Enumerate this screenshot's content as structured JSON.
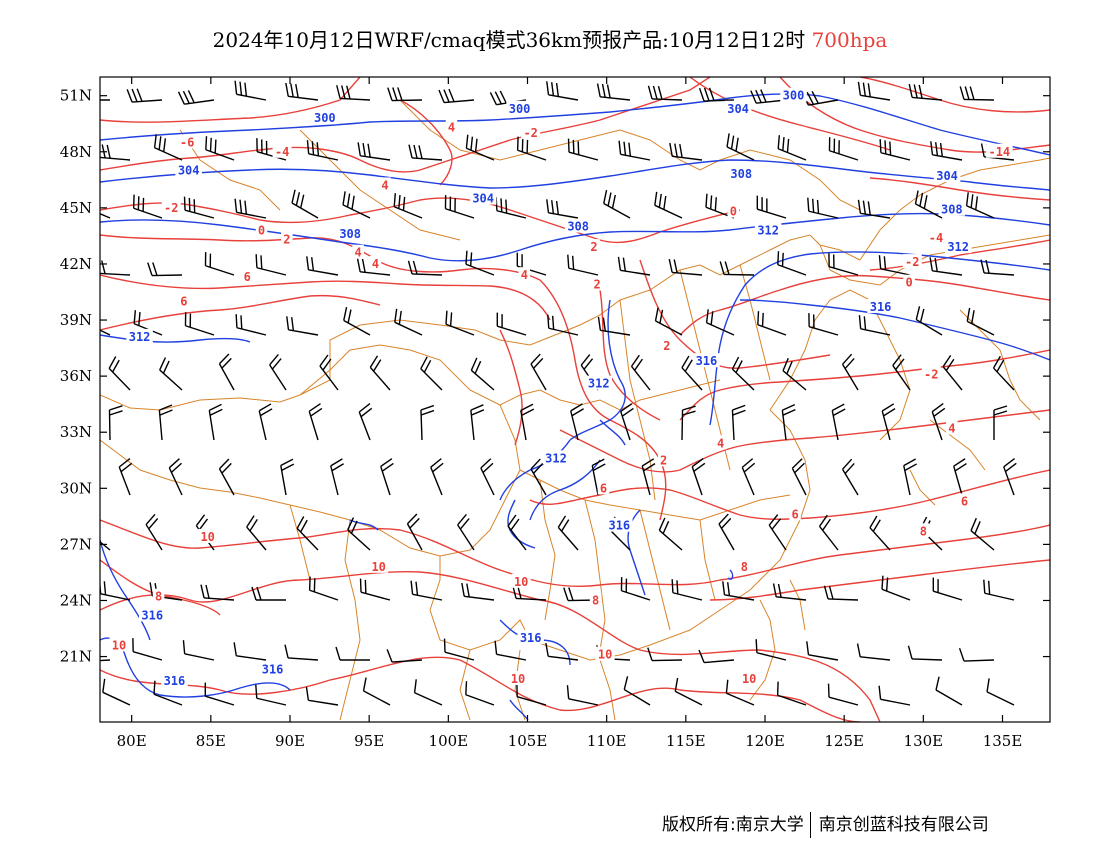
{
  "title": {
    "main": "2024年10月12日WRF/cmaq模式36km预报产品:10月12日12时",
    "level": "700hpa"
  },
  "colors": {
    "height_contour": "#2040e0",
    "temperature_contour": "#e8403a",
    "boundary": "#d8842a",
    "wind_barb": "#000000",
    "frame": "#000000"
  },
  "map": {
    "lon_range": [
      78,
      138
    ],
    "lat_range": [
      17.5,
      52
    ],
    "lon_ticks": [
      "80E",
      "85E",
      "90E",
      "95E",
      "100E",
      "105E",
      "110E",
      "115E",
      "120E",
      "125E",
      "130E",
      "135E"
    ],
    "lat_ticks": [
      "51N",
      "48N",
      "45N",
      "42N",
      "39N",
      "36N",
      "33N",
      "30N",
      "27N",
      "24N",
      "21N"
    ]
  },
  "height_labels": [
    {
      "text": "300",
      "lon": 92.2,
      "lat": 49.8
    },
    {
      "text": "300",
      "lon": 104.5,
      "lat": 50.3
    },
    {
      "text": "300",
      "lon": 121.8,
      "lat": 51.0
    },
    {
      "text": "304",
      "lon": 83.6,
      "lat": 47.0
    },
    {
      "text": "304",
      "lon": 102.2,
      "lat": 45.5
    },
    {
      "text": "304",
      "lon": 118.3,
      "lat": 50.3
    },
    {
      "text": "304",
      "lon": 131.5,
      "lat": 46.7
    },
    {
      "text": "308",
      "lon": 93.8,
      "lat": 43.6
    },
    {
      "text": "308",
      "lon": 108.2,
      "lat": 44.0
    },
    {
      "text": "308",
      "lon": 118.5,
      "lat": 46.8
    },
    {
      "text": "308",
      "lon": 131.8,
      "lat": 44.9
    },
    {
      "text": "312",
      "lon": 80.5,
      "lat": 38.1
    },
    {
      "text": "312",
      "lon": 120.2,
      "lat": 43.8
    },
    {
      "text": "312",
      "lon": 132.2,
      "lat": 42.9
    },
    {
      "text": "312",
      "lon": 109.5,
      "lat": 35.6
    },
    {
      "text": "312",
      "lon": 106.8,
      "lat": 31.6
    },
    {
      "text": "316",
      "lon": 127.3,
      "lat": 39.7
    },
    {
      "text": "316",
      "lon": 116.3,
      "lat": 36.8
    },
    {
      "text": "316",
      "lon": 110.8,
      "lat": 28.0
    },
    {
      "text": "316",
      "lon": 81.3,
      "lat": 23.2
    },
    {
      "text": "316",
      "lon": 82.7,
      "lat": 19.7
    },
    {
      "text": "316",
      "lon": 88.9,
      "lat": 20.3
    },
    {
      "text": "316",
      "lon": 105.2,
      "lat": 22.0
    }
  ],
  "temperature_labels": [
    {
      "text": "-6",
      "lon": 83.5,
      "lat": 48.5
    },
    {
      "text": "-4",
      "lon": 89.5,
      "lat": 48.0
    },
    {
      "text": "4",
      "lon": 96.0,
      "lat": 46.2
    },
    {
      "text": "4",
      "lon": 100.2,
      "lat": 49.3
    },
    {
      "text": "-2",
      "lon": 105.2,
      "lat": 49.0
    },
    {
      "text": "-14",
      "lon": 134.8,
      "lat": 48.0
    },
    {
      "text": "-2",
      "lon": 82.5,
      "lat": 45.0
    },
    {
      "text": "0",
      "lon": 88.2,
      "lat": 43.8
    },
    {
      "text": "2",
      "lon": 89.8,
      "lat": 43.3
    },
    {
      "text": "4",
      "lon": 94.3,
      "lat": 42.6
    },
    {
      "text": "4",
      "lon": 95.4,
      "lat": 42.0
    },
    {
      "text": "6",
      "lon": 87.3,
      "lat": 41.3
    },
    {
      "text": "6",
      "lon": 83.3,
      "lat": 40.0
    },
    {
      "text": "4",
      "lon": 104.8,
      "lat": 41.4
    },
    {
      "text": "2",
      "lon": 109.2,
      "lat": 42.9
    },
    {
      "text": "2",
      "lon": 109.4,
      "lat": 40.9
    },
    {
      "text": "0",
      "lon": 118.0,
      "lat": 44.8
    },
    {
      "text": "-2",
      "lon": 129.3,
      "lat": 42.1
    },
    {
      "text": "-4",
      "lon": 130.8,
      "lat": 43.4
    },
    {
      "text": "0",
      "lon": 129.1,
      "lat": 41.0
    },
    {
      "text": "2",
      "lon": 113.8,
      "lat": 37.6
    },
    {
      "text": "-2",
      "lon": 130.5,
      "lat": 36.1
    },
    {
      "text": "4",
      "lon": 131.8,
      "lat": 33.2
    },
    {
      "text": "4",
      "lon": 117.2,
      "lat": 32.4
    },
    {
      "text": "2",
      "lon": 113.6,
      "lat": 31.5
    },
    {
      "text": "6",
      "lon": 109.8,
      "lat": 30.0
    },
    {
      "text": "6",
      "lon": 121.9,
      "lat": 28.6
    },
    {
      "text": "6",
      "lon": 132.6,
      "lat": 29.3
    },
    {
      "text": "8",
      "lon": 130.0,
      "lat": 27.7
    },
    {
      "text": "8",
      "lon": 118.7,
      "lat": 25.8
    },
    {
      "text": "8",
      "lon": 81.7,
      "lat": 24.2
    },
    {
      "text": "8",
      "lon": 109.3,
      "lat": 24.0
    },
    {
      "text": "10",
      "lon": 84.8,
      "lat": 27.4
    },
    {
      "text": "10",
      "lon": 95.6,
      "lat": 25.8
    },
    {
      "text": "10",
      "lon": 104.6,
      "lat": 25.0
    },
    {
      "text": "10",
      "lon": 79.2,
      "lat": 21.6
    },
    {
      "text": "10",
      "lon": 109.9,
      "lat": 21.1
    },
    {
      "text": "10",
      "lon": 104.4,
      "lat": 19.8
    },
    {
      "text": "10",
      "lon": 119.0,
      "lat": 19.8
    }
  ],
  "footer": {
    "copyright": "版权所有:南京大学",
    "company": "南京创蓝科技有限公司"
  }
}
